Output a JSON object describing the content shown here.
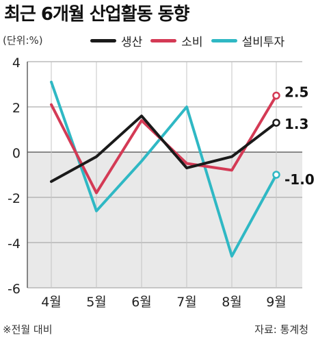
{
  "chart_data": {
    "type": "line",
    "title": "최근 6개월 산업활동 동향",
    "unit": "(단위:%)",
    "categories": [
      "4월",
      "5월",
      "6월",
      "7월",
      "8월",
      "9월"
    ],
    "ylim": [
      -6,
      4
    ],
    "yticks": [
      "4",
      "2",
      "0",
      "-2",
      "-4",
      "-6"
    ],
    "grid": true,
    "legend": "top",
    "series": [
      {
        "name": "생산",
        "color": "#1a1a1a",
        "values": [
          -1.3,
          -0.2,
          1.6,
          -0.7,
          -0.2,
          1.3
        ],
        "end_label": "1.3"
      },
      {
        "name": "소비",
        "color": "#d43a55",
        "values": [
          2.1,
          -1.8,
          1.4,
          -0.5,
          -0.8,
          2.5
        ],
        "end_label": "2.5"
      },
      {
        "name": "설비투자",
        "color": "#2fb8c4",
        "values": [
          3.1,
          -2.6,
          -0.4,
          2.0,
          -4.6,
          -1.0
        ],
        "end_label": "-1.0"
      }
    ],
    "note": "※전월 대비",
    "source": "자료: 통계청"
  }
}
